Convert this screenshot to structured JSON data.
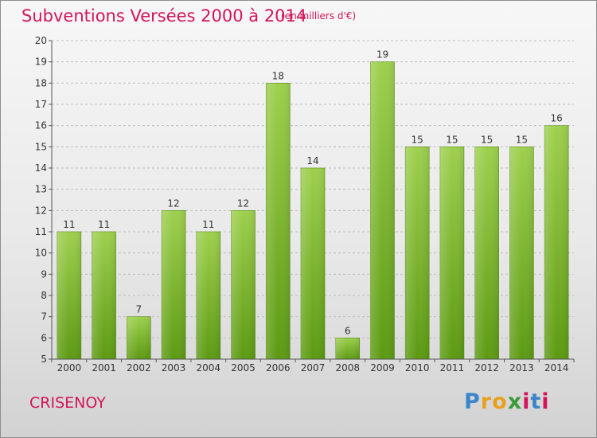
{
  "header": {
    "title": "Subventions Versées 2000 à 2014",
    "subtitle": "(en milliers d'€)"
  },
  "footer": {
    "commune": "CRISENOY",
    "brand": "Proxiti",
    "brand_colors": [
      "#3a86c8",
      "#e8a020",
      "#e8a020",
      "#3a9a3a",
      "#d4145a",
      "#3a86c8",
      "#d4145a"
    ]
  },
  "colors": {
    "bar_top": "#9ed04e",
    "bar_bottom": "#5c9a12",
    "title": "#d4145a",
    "axis": "#555555",
    "grid": "#bdbdbd"
  },
  "chart_data": {
    "type": "bar",
    "categories": [
      "2000",
      "2001",
      "2002",
      "2003",
      "2004",
      "2005",
      "2006",
      "2007",
      "2008",
      "2009",
      "2010",
      "2011",
      "2012",
      "2013",
      "2014"
    ],
    "values": [
      11,
      11,
      7,
      12,
      11,
      12,
      18,
      14,
      6,
      19,
      15,
      15,
      15,
      15,
      16
    ],
    "ylim": [
      5,
      20
    ],
    "yticks": [
      5,
      6,
      7,
      8,
      9,
      10,
      11,
      12,
      13,
      14,
      15,
      16,
      17,
      18,
      19,
      20
    ],
    "grid": true
  }
}
